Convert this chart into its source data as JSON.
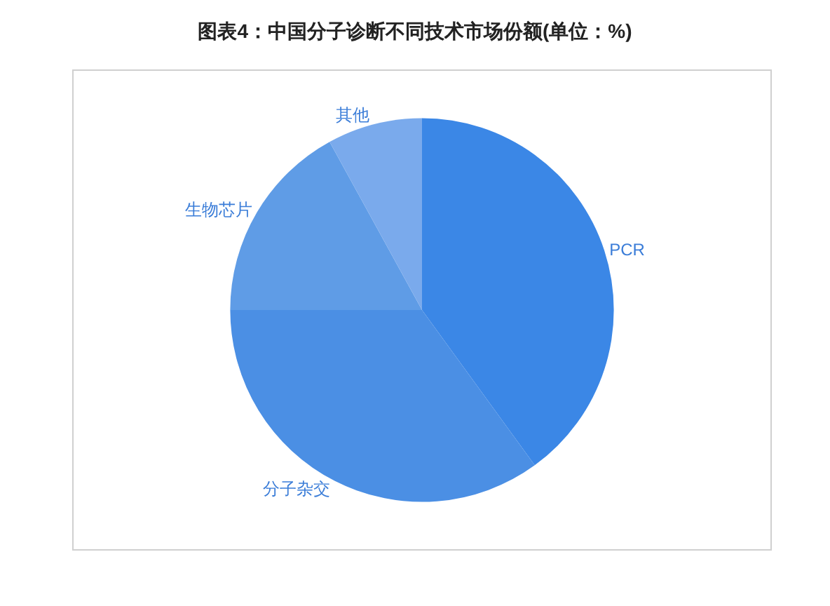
{
  "chart_data": {
    "type": "pie",
    "title": "图表4：中国分子诊断不同技术市场份额(单位：%)",
    "categories": [
      "PCR",
      "分子杂交",
      "生物芯片",
      "其他"
    ],
    "values": [
      40,
      35,
      17,
      8
    ],
    "colors": [
      "#3b87e6",
      "#4b8fe4",
      "#5f9ce6",
      "#7aaaec"
    ],
    "legend": false
  }
}
